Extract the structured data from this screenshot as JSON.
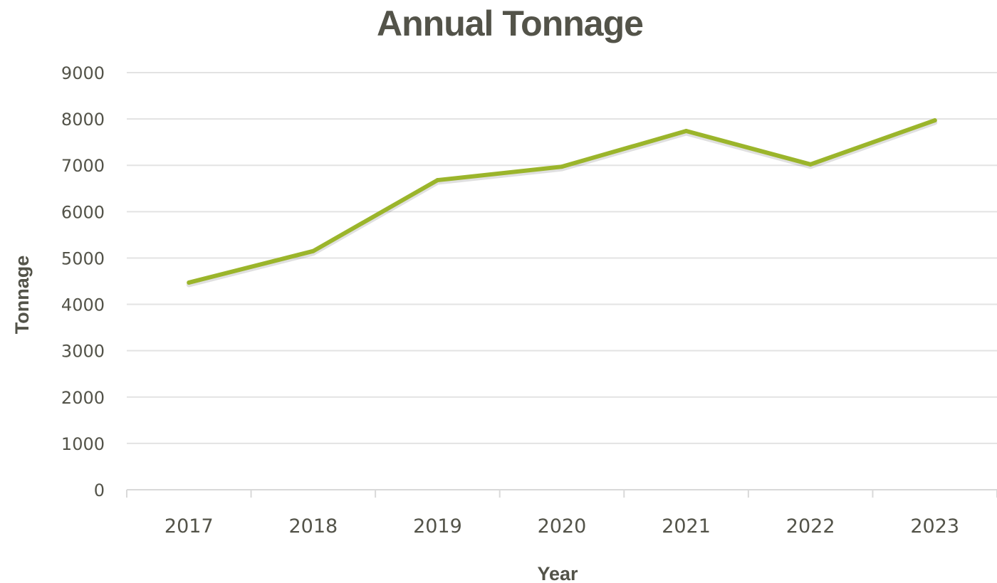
{
  "colors": {
    "text": "#535349",
    "line": "#9bb52b",
    "grid": "#e3e3e3",
    "axis": "#d9d9d9"
  },
  "chart_data": {
    "type": "line",
    "title": "Annual Tonnage",
    "xlabel": "Year",
    "ylabel": "Tonnage",
    "categories": [
      "2017",
      "2018",
      "2019",
      "2020",
      "2021",
      "2022",
      "2023"
    ],
    "series": [
      {
        "values": [
          4470,
          5150,
          6680,
          6970,
          7740,
          7020,
          7970
        ]
      }
    ],
    "ylim": [
      0,
      9000
    ],
    "yticks": [
      0,
      1000,
      2000,
      3000,
      4000,
      5000,
      6000,
      7000,
      8000,
      9000
    ],
    "grid": true,
    "legend": "none"
  }
}
